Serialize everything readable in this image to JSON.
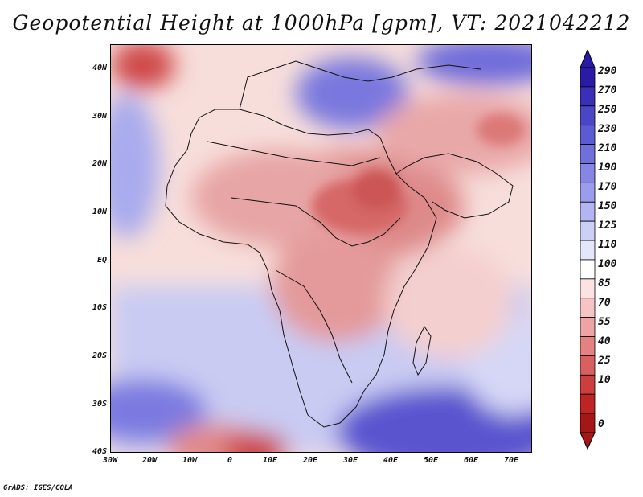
{
  "title": "Geopotential Height at 1000hPa [gpm], VT: 2021042212",
  "footer": "GrADS: IGES/COLA",
  "map": {
    "lat_ticks": [
      "40N",
      "30N",
      "20N",
      "10N",
      "EQ",
      "10S",
      "20S",
      "30S",
      "40S"
    ],
    "lon_ticks": [
      "30W",
      "20W",
      "10W",
      "0",
      "10E",
      "20E",
      "30E",
      "40E",
      "50E",
      "60E",
      "70E"
    ],
    "extent": {
      "lon_min": -30,
      "lon_max": 75,
      "lat_min": -40,
      "lat_max": 45
    }
  },
  "colorbar": {
    "labels": [
      "290",
      "270",
      "250",
      "230",
      "210",
      "190",
      "170",
      "150",
      "125",
      "110",
      "100",
      "85",
      "70",
      "55",
      "40",
      "25",
      "10",
      "0"
    ],
    "colors": [
      "#2a1aa6",
      "#3a30b8",
      "#4a46c6",
      "#5c5cd2",
      "#7070dc",
      "#8686e4",
      "#9c9cec",
      "#b4b4f2",
      "#cccff6",
      "#e4e6fa",
      "#ffffff",
      "#fce2e2",
      "#f6c4c4",
      "#eea4a4",
      "#e48282",
      "#d96060",
      "#cd3e3e",
      "#bf2424",
      "#a51616"
    ]
  }
}
